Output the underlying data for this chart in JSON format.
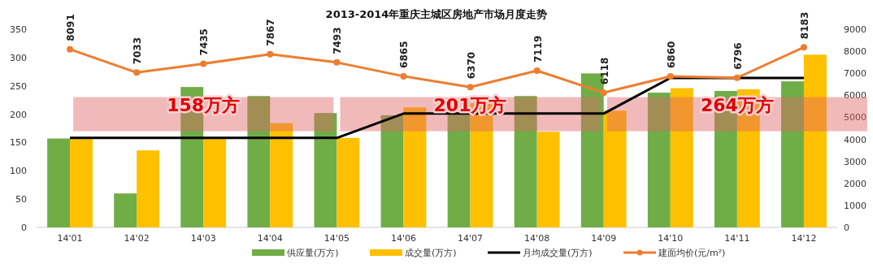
{
  "chart_data": {
    "type": "bar",
    "title": "2013-2014年重庆主城区房地产市场月度走势",
    "categories": [
      "14'01",
      "14'02",
      "14'03",
      "14'04",
      "14'05",
      "14'06",
      "14'07",
      "14'08",
      "14'09",
      "14'10",
      "14'11",
      "14'12"
    ],
    "series": [
      {
        "name": "供应量(万方)",
        "color": "#70ad47",
        "values": [
          157,
          60,
          248,
          232,
          202,
          198,
          200,
          232,
          272,
          238,
          241,
          258
        ]
      },
      {
        "name": "成交量(万方)",
        "color": "#ffc000",
        "values": [
          157,
          136,
          158,
          184,
          158,
          212,
          219,
          169,
          206,
          246,
          244,
          305
        ]
      },
      {
        "name": "月均成交量(万方)",
        "type": "line",
        "color": "#000000",
        "marker": "none",
        "values": [
          158,
          158,
          158,
          158,
          158,
          201,
          201,
          201,
          201,
          264,
          264,
          264
        ]
      },
      {
        "name": "建面均价(元/m²)",
        "type": "line",
        "axis": "y2",
        "color": "#ed7d31",
        "marker": "circle",
        "data_labels": true,
        "values": [
          8091,
          7033,
          7435,
          7867,
          7493,
          6865,
          6370,
          7119,
          6118,
          6860,
          6796,
          8183
        ]
      }
    ],
    "annotations": [
      {
        "text": "158万方",
        "x": "14'03",
        "y": 200
      },
      {
        "text": "201万方",
        "x": "14'07",
        "y": 200
      },
      {
        "text": "264万方",
        "x": "14'11",
        "y": 200
      }
    ],
    "ylim": [
      0,
      350
    ],
    "yticks": [
      0,
      50,
      100,
      150,
      200,
      250,
      300,
      350
    ],
    "y2lim": [
      0,
      9000
    ],
    "y2ticks": [
      0,
      1000,
      2000,
      3000,
      4000,
      5000,
      6000,
      7000,
      8000,
      9000
    ],
    "grid": false,
    "legend": "bottom"
  }
}
